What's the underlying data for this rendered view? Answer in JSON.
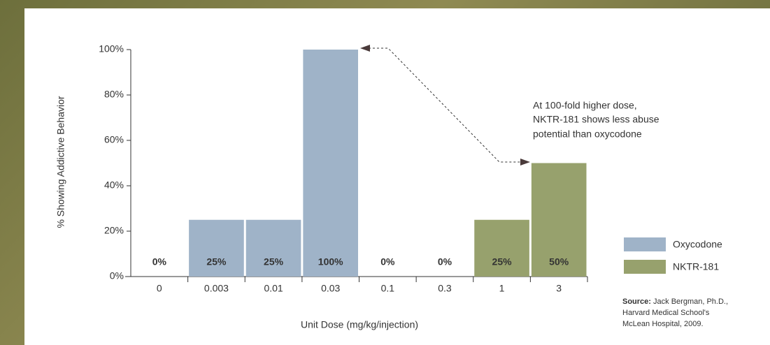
{
  "chart_data": {
    "type": "bar",
    "categories": [
      "0",
      "0.003",
      "0.01",
      "0.03",
      "0.1",
      "0.3",
      "1",
      "3"
    ],
    "series": [
      {
        "name": "Oxycodone",
        "color": "#9fb3c8",
        "values": [
          0,
          25,
          25,
          100,
          0,
          0,
          null,
          null
        ],
        "value_labels": [
          "0%",
          "25%",
          "25%",
          "100%",
          "0%",
          "0%",
          null,
          null
        ]
      },
      {
        "name": "NKTR-181",
        "color": "#97a16d",
        "values": [
          null,
          null,
          null,
          null,
          null,
          null,
          25,
          50
        ],
        "value_labels": [
          null,
          null,
          null,
          null,
          null,
          null,
          "25%",
          "50%"
        ]
      }
    ],
    "ylim": [
      0,
      100
    ],
    "yticks": [
      {
        "value": 0,
        "label": "0%"
      },
      {
        "value": 20,
        "label": "20%"
      },
      {
        "value": 40,
        "label": "40%"
      },
      {
        "value": 60,
        "label": "60%"
      },
      {
        "value": 80,
        "label": "80%"
      },
      {
        "value": 100,
        "label": "100%"
      }
    ],
    "y_label": "% Showing Addictive Behavior",
    "x_label": "Unit Dose (mg/kg/injection)",
    "legend": "right",
    "annotation": [
      "At 100-fold higher dose,",
      "NKTR-181 shows less abuse",
      "potential than oxycodone"
    ],
    "source": {
      "label": "Source:",
      "lines": [
        "Jack Bergman, Ph.D.,",
        "Harvard Medical School's",
        "McLean Hospital, 2009."
      ]
    }
  }
}
